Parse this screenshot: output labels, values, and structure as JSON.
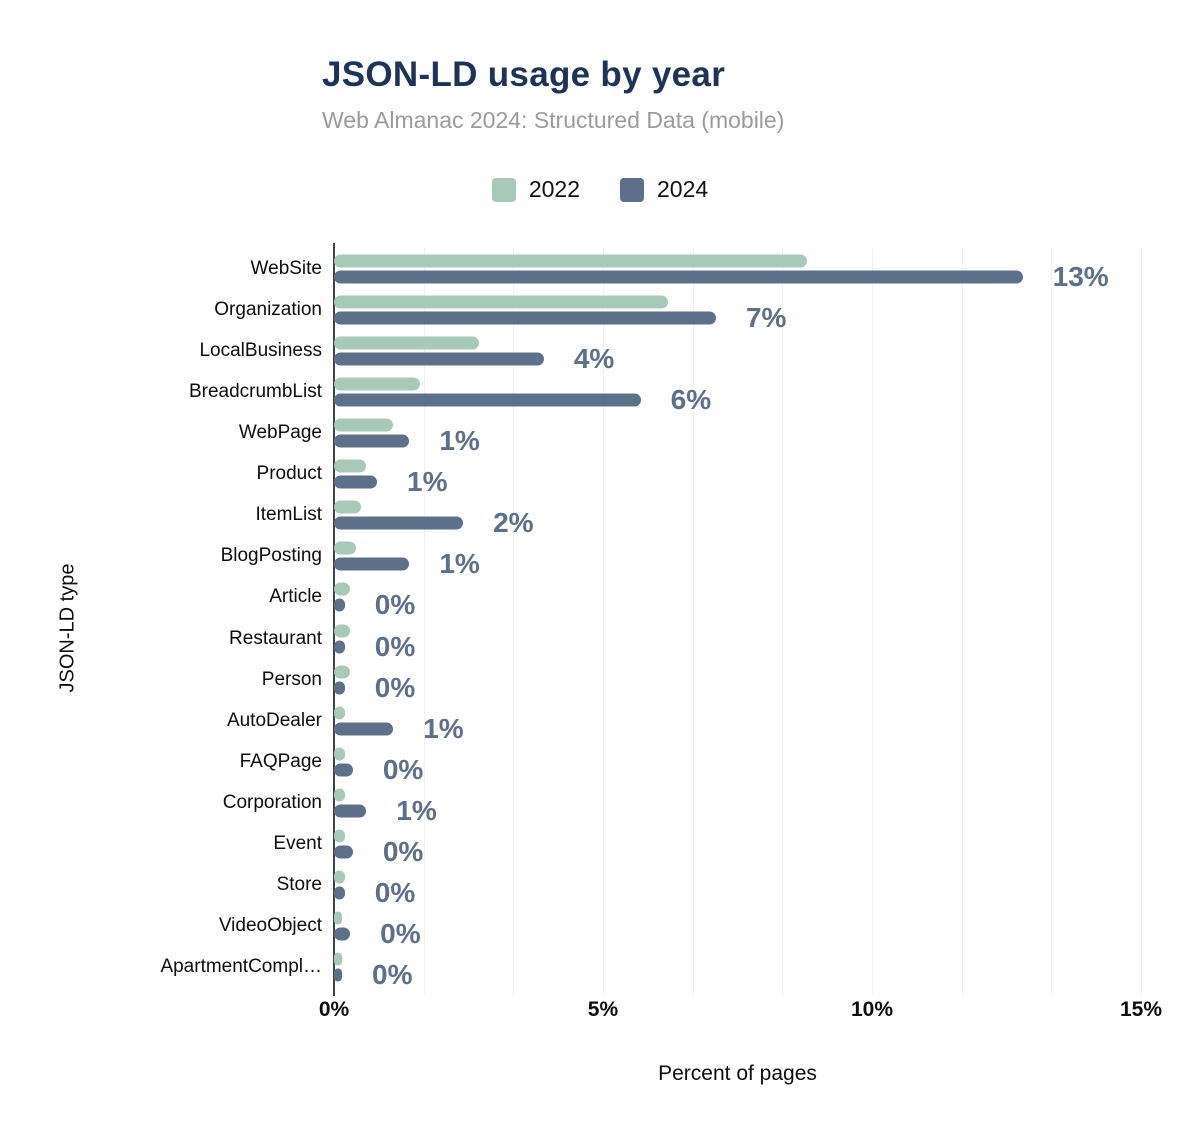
{
  "header": {
    "title": "JSON-LD usage by year",
    "subtitle": "Web Almanac 2024: Structured Data (mobile)"
  },
  "chart_data": {
    "type": "bar",
    "orientation": "horizontal",
    "title": "JSON-LD usage by year",
    "subtitle": "Web Almanac 2024: Structured Data (mobile)",
    "xlabel": "Percent of pages",
    "ylabel": "JSON-LD type",
    "xlim": [
      0,
      15
    ],
    "xticks": [
      "0%",
      "5%",
      "10%",
      "15%"
    ],
    "minor_grid_divisions": 9,
    "grid": "faint vertical minor gridlines, legend at top center",
    "legend_position": "top",
    "categories": [
      "WebSite",
      "Organization",
      "LocalBusiness",
      "BreadcrumbList",
      "WebPage",
      "Product",
      "ItemList",
      "BlogPosting",
      "Article",
      "Restaurant",
      "Person",
      "AutoDealer",
      "FAQPage",
      "Corporation",
      "Event",
      "Store",
      "VideoObject",
      "ApartmentCompl…"
    ],
    "series": [
      {
        "name": "2022",
        "color": "#a9c9b8",
        "values": [
          8.8,
          6.2,
          2.7,
          1.6,
          1.1,
          0.6,
          0.5,
          0.4,
          0.3,
          0.3,
          0.3,
          0.2,
          0.2,
          0.2,
          0.2,
          0.2,
          0.1,
          0.1
        ]
      },
      {
        "name": "2024",
        "color": "#5e7089",
        "values": [
          12.8,
          7.1,
          3.9,
          5.7,
          1.4,
          0.8,
          2.4,
          1.4,
          0.2,
          0.2,
          0.2,
          1.1,
          0.35,
          0.6,
          0.35,
          0.2,
          0.3,
          0.1
        ]
      }
    ],
    "bar_labels": [
      "13%",
      "7%",
      "4%",
      "6%",
      "1%",
      "1%",
      "2%",
      "1%",
      "0%",
      "0%",
      "0%",
      "1%",
      "0%",
      "1%",
      "0%",
      "0%",
      "0%",
      "0%"
    ],
    "bar_labels_attached_to": "2024",
    "colors": {
      "series_2022": "#a9c9b8",
      "series_2024": "#5e7089",
      "annotation": "#5e7089",
      "title": "#1e3356",
      "subtitle": "#9b9b9b",
      "gridline": "#f2f2f5",
      "axis_line": "#424242",
      "text": "#0d0d0d"
    }
  }
}
